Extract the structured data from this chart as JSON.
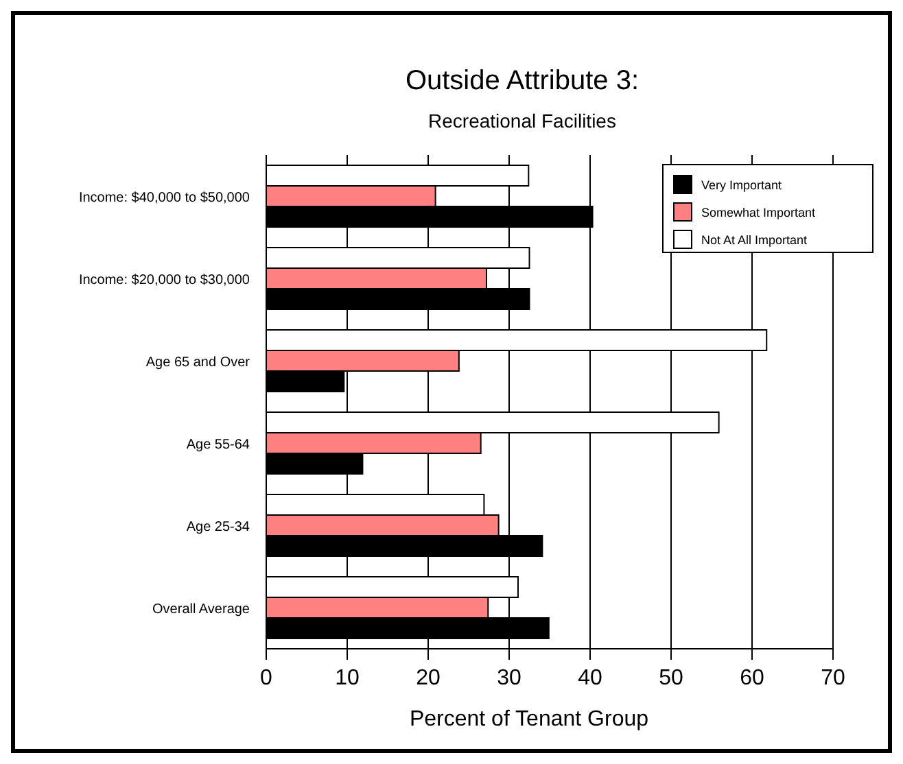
{
  "chart_data": {
    "type": "bar",
    "orientation": "horizontal",
    "title": "Outside Attribute 3:",
    "subtitle": "Recreational Facilities",
    "xlabel": "Percent of Tenant Group",
    "categories": [
      "Income: $40,000 to $50,000",
      "Income: $20,000 to $30,000",
      "Age 65 and Over",
      "Age 55-64",
      "Age 25-34",
      "Overall Average"
    ],
    "series": [
      {
        "name": "Not At All Important",
        "color": "#ffffff",
        "values": [
          32.4,
          32.5,
          61.8,
          55.9,
          26.9,
          31.1
        ]
      },
      {
        "name": "Somewhat Important",
        "color": "#ff8080",
        "values": [
          20.9,
          27.2,
          23.8,
          26.5,
          28.7,
          27.4
        ]
      },
      {
        "name": "Very Important",
        "color": "#000000",
        "values": [
          40.3,
          32.5,
          9.6,
          11.9,
          34.1,
          34.9
        ]
      }
    ],
    "xlim": [
      0,
      70
    ],
    "xticks": [
      0,
      10,
      20,
      30,
      40,
      50,
      60,
      70
    ],
    "grid": "x",
    "legend": "top right"
  }
}
